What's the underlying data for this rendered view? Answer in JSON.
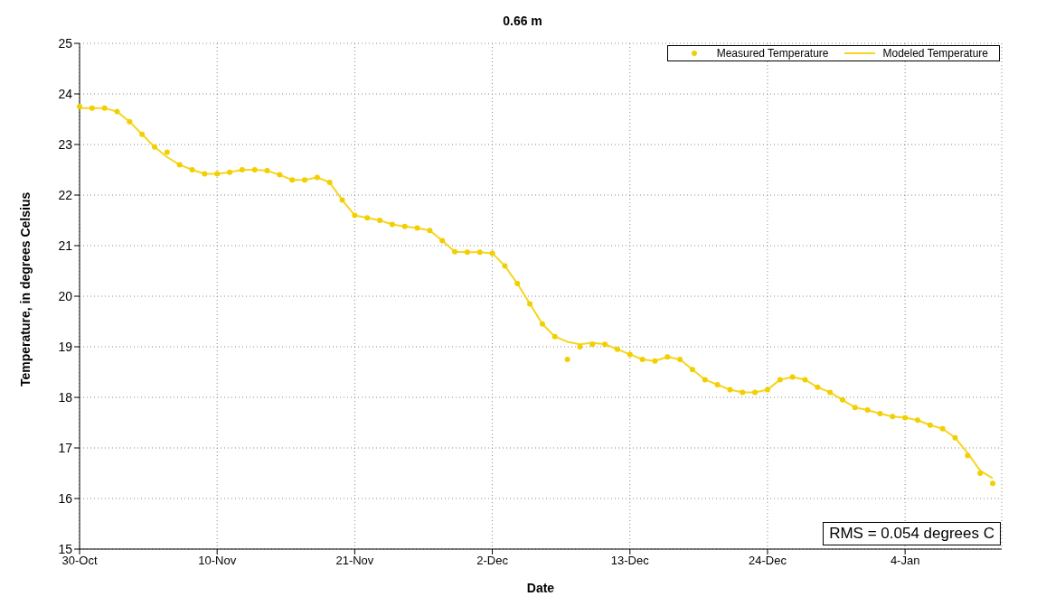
{
  "chart_data": {
    "type": "scatter",
    "title": "0.66 m",
    "xlabel": "Date",
    "ylabel": "Temperature, in degrees Celsius",
    "annotations": [
      "RMS =  0.054 degrees C"
    ],
    "categories": [
      "30-Oct",
      null,
      null,
      null,
      null,
      null,
      null,
      null,
      null,
      null,
      null,
      "10-Nov",
      null,
      null,
      null,
      null,
      null,
      null,
      null,
      null,
      null,
      null,
      "21-Nov",
      null,
      null,
      null,
      null,
      null,
      null,
      null,
      null,
      null,
      null,
      "2-Dec",
      null,
      null,
      null,
      null,
      null,
      null,
      null,
      null,
      null,
      null,
      "13-Dec",
      null,
      null,
      null,
      null,
      null,
      null,
      null,
      null,
      null,
      null,
      "24-Dec",
      null,
      null,
      null,
      null,
      null,
      null,
      null,
      null,
      null,
      null,
      "4-Jan",
      null,
      null,
      null,
      null,
      null,
      null,
      null
    ],
    "series": [
      {
        "name": "Measured Temperature",
        "marker": "circle",
        "color": "#f2cf00",
        "values": [
          23.75,
          23.72,
          23.72,
          23.65,
          23.45,
          23.2,
          22.95,
          22.85,
          22.6,
          22.5,
          22.42,
          22.42,
          22.45,
          22.5,
          22.5,
          22.48,
          22.4,
          22.3,
          22.3,
          22.35,
          22.25,
          21.9,
          21.6,
          21.55,
          21.5,
          21.42,
          21.38,
          21.35,
          21.3,
          21.1,
          20.88,
          20.87,
          20.87,
          20.85,
          20.6,
          20.25,
          19.85,
          19.45,
          19.2,
          18.75,
          19.0,
          19.05,
          19.05,
          18.95,
          18.85,
          18.75,
          18.72,
          18.8,
          18.75,
          18.55,
          18.35,
          18.25,
          18.15,
          18.1,
          18.1,
          18.15,
          18.35,
          18.4,
          18.35,
          18.2,
          18.1,
          17.95,
          17.8,
          17.75,
          17.68,
          17.62,
          17.6,
          17.55,
          17.45,
          17.38,
          17.2,
          16.85,
          16.5,
          16.3
        ]
      },
      {
        "name": "Modeled Temperature",
        "type": "line",
        "marker": "none",
        "color": "#f7d520",
        "values": [
          23.72,
          23.72,
          23.72,
          23.65,
          23.45,
          23.2,
          22.95,
          22.75,
          22.6,
          22.5,
          22.42,
          22.42,
          22.45,
          22.5,
          22.5,
          22.48,
          22.4,
          22.3,
          22.3,
          22.35,
          22.25,
          21.9,
          21.6,
          21.55,
          21.5,
          21.42,
          21.38,
          21.35,
          21.3,
          21.1,
          20.88,
          20.87,
          20.87,
          20.85,
          20.6,
          20.25,
          19.85,
          19.45,
          19.2,
          19.1,
          19.05,
          19.08,
          19.05,
          18.95,
          18.85,
          18.75,
          18.72,
          18.8,
          18.75,
          18.55,
          18.35,
          18.25,
          18.15,
          18.1,
          18.1,
          18.15,
          18.35,
          18.4,
          18.35,
          18.2,
          18.1,
          17.95,
          17.8,
          17.75,
          17.68,
          17.62,
          17.6,
          17.55,
          17.45,
          17.38,
          17.2,
          16.9,
          16.55,
          16.4
        ]
      }
    ],
    "ylim": [
      15,
      25
    ],
    "yticks": [
      15,
      16,
      17,
      18,
      19,
      20,
      21,
      22,
      23,
      24,
      25
    ],
    "grid": true,
    "legend": "top right"
  }
}
